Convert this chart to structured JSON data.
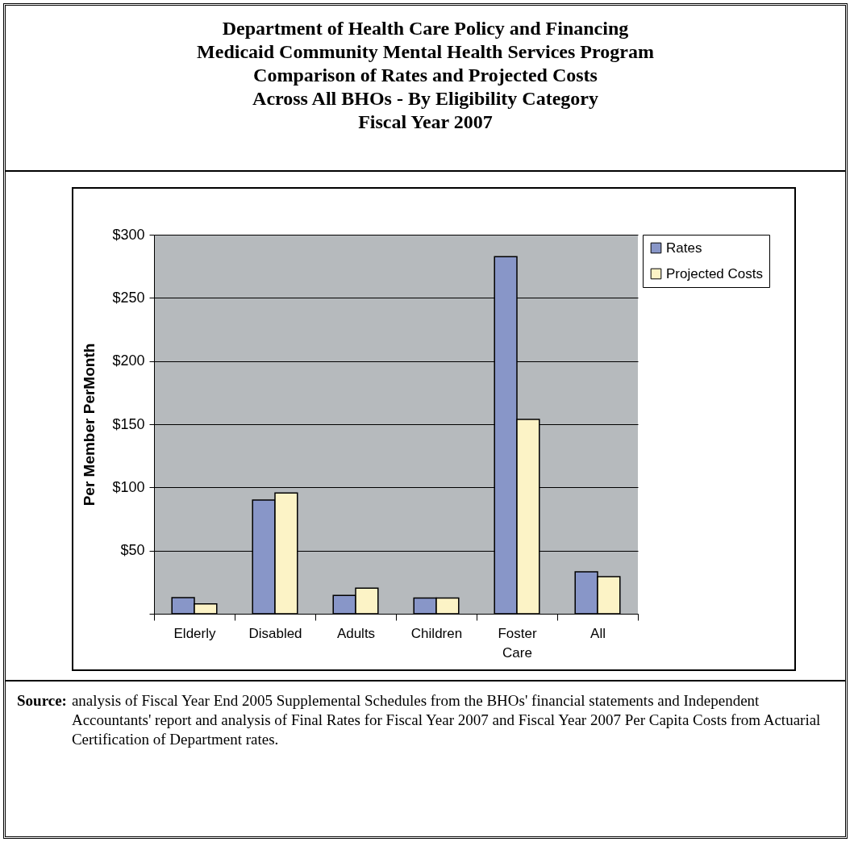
{
  "chart_data": {
    "type": "bar",
    "title": "Department of Health Care Policy and Financing\nMedicaid Community Mental Health Services Program\nComparison of Rates and Projected Costs\nAcross All BHOs - By Eligibility Category\nFiscal Year 2007",
    "ylabel": "Per Member PerMonth",
    "categories": [
      "Elderly",
      "Disabled",
      "Adults",
      "Children",
      "Foster Care",
      "All"
    ],
    "series": [
      {
        "name": "Rates",
        "color": "#8896c8",
        "values": [
          12.7,
          90,
          14.6,
          12.5,
          282.6,
          33.2
        ]
      },
      {
        "name": "Projected Costs",
        "color": "#fcf3c6",
        "values": [
          7.8,
          95.6,
          20.3,
          12.5,
          153.8,
          29.4
        ]
      }
    ],
    "ylim": [
      0,
      300
    ],
    "yticks": [
      {
        "value": 0,
        "label": null
      },
      {
        "value": 50,
        "label": "$50"
      },
      {
        "value": 100,
        "label": "$100"
      },
      {
        "value": 150,
        "label": "$150"
      },
      {
        "value": 200,
        "label": "$200"
      },
      {
        "value": 250,
        "label": "$250"
      },
      {
        "value": 300,
        "label": "$300"
      }
    ],
    "grid": "y",
    "legend": "right",
    "annotations": [
      "Source: analysis of Fiscal Year End 2005 Supplemental Schedules from the BHOs' financial statements and Independent Accountants' report and analysis of Final Rates for Fiscal Year 2007 and Fiscal Year 2007 Per Capita Costs from Actuarial Certification of Department rates."
    ]
  }
}
